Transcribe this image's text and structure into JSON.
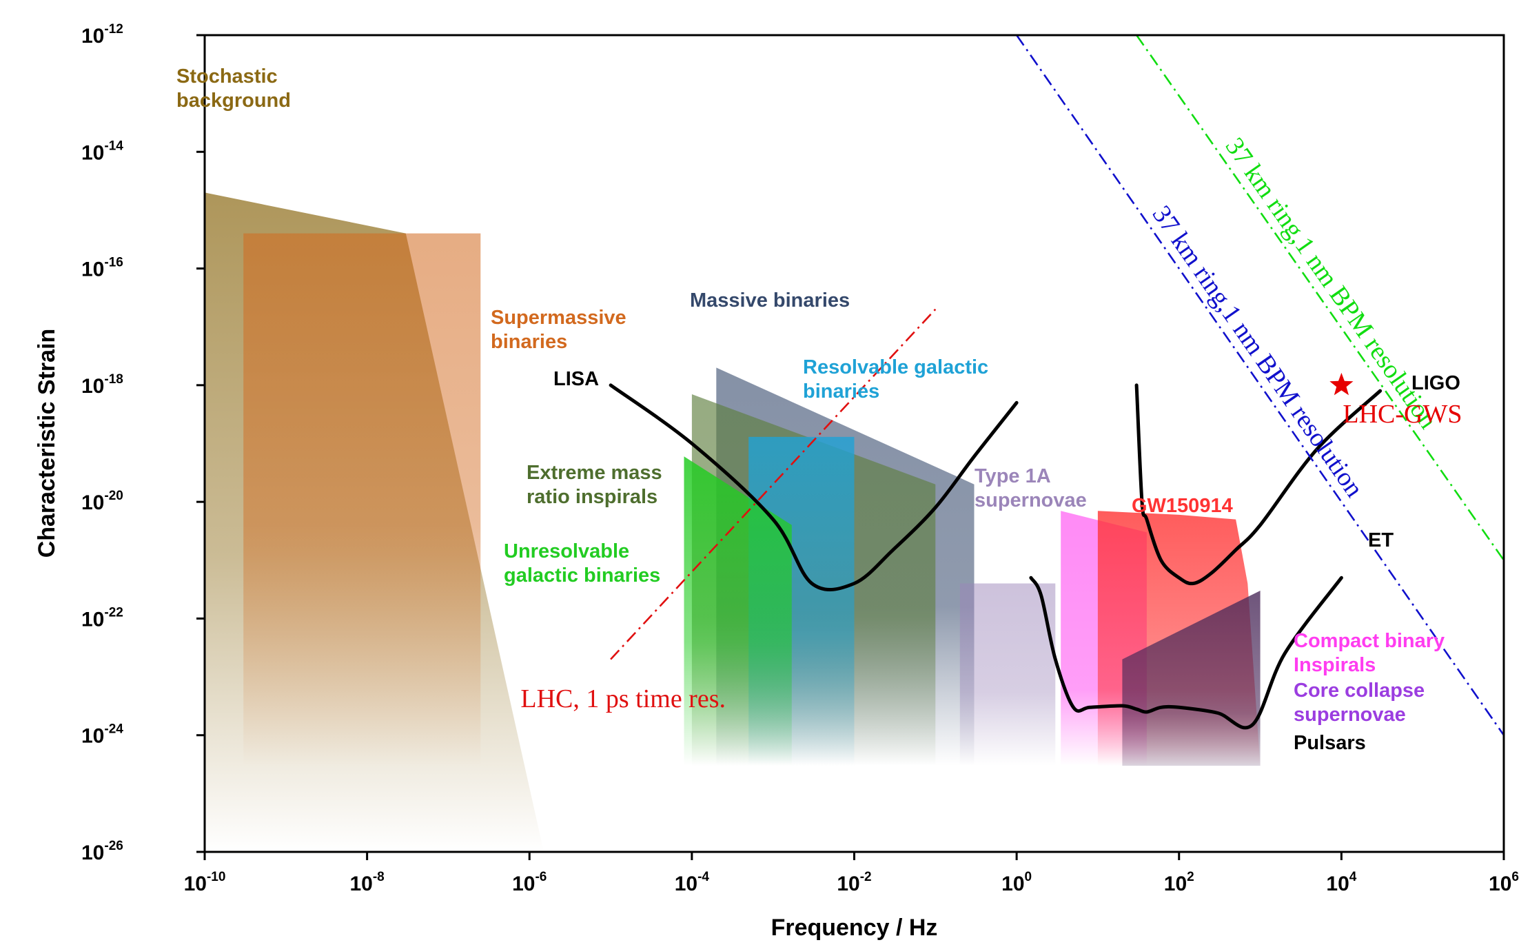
{
  "chart_data": {
    "type": "area",
    "title": "",
    "xlabel": "Frequency / Hz",
    "ylabel": "Characteristic Strain",
    "x_scale": "log",
    "y_scale": "log",
    "xlim": [
      1e-10,
      1000000.0
    ],
    "ylim": [
      1e-26,
      1e-12
    ],
    "grid": false,
    "x_tick_exponents": [
      -10,
      -8,
      -6,
      -4,
      -2,
      0,
      2,
      4,
      6
    ],
    "y_tick_exponents": [
      -12,
      -14,
      -16,
      -18,
      -20,
      -22,
      -24,
      -26
    ],
    "tick_base": "10",
    "regions": [
      {
        "key": "stochastic",
        "label_lines": [
          "Stochastic",
          "background"
        ],
        "color": "#8b6914",
        "points": [
          [
            1e-10,
            2e-15
          ],
          [
            3e-08,
            4e-16
          ],
          [
            1.5e-06,
            1e-26
          ],
          [
            1e-10,
            1e-26
          ]
        ]
      },
      {
        "key": "smbh",
        "label_lines": [
          "Supermassive",
          "binaries"
        ],
        "color": "#d2691e",
        "points": [
          [
            3e-10,
            4e-16
          ],
          [
            2.5e-07,
            4e-16
          ],
          [
            2.5e-07,
            3e-25
          ],
          [
            3e-10,
            3e-25
          ]
        ]
      },
      {
        "key": "massive",
        "label_lines": [
          "Massive binaries"
        ],
        "color": "#34486b",
        "points": [
          [
            0.0002,
            2e-18
          ],
          [
            0.3,
            2e-20
          ],
          [
            0.3,
            3e-25
          ],
          [
            0.0002,
            3e-25
          ]
        ]
      },
      {
        "key": "emri",
        "label_lines": [
          "Extreme mass",
          "ratio inspirals"
        ],
        "color": "#5e7e3e",
        "points": [
          [
            0.0001,
            7e-19
          ],
          [
            0.1,
            2e-20
          ],
          [
            0.1,
            3e-25
          ],
          [
            0.0001,
            3e-25
          ]
        ]
      },
      {
        "key": "resolvable",
        "label_lines": [
          "Resolvable galactic",
          "binaries"
        ],
        "color": "#1fa2d6",
        "points": [
          [
            0.0005,
            1.3e-19
          ],
          [
            0.01,
            1.3e-19
          ],
          [
            0.01,
            3e-25
          ],
          [
            0.0005,
            3e-25
          ]
        ]
      },
      {
        "key": "unresolvable",
        "label_lines": [
          "Unresolvable",
          "galactic binaries"
        ],
        "color": "#22cc22",
        "points": [
          [
            8e-05,
            6e-20
          ],
          [
            0.0017,
            4e-21
          ],
          [
            0.0017,
            3e-25
          ],
          [
            8e-05,
            3e-25
          ]
        ]
      },
      {
        "key": "type1a",
        "label_lines": [
          "Type 1A",
          "supernovae"
        ],
        "color": "#9b85b9",
        "points": [
          [
            0.2,
            4e-22
          ],
          [
            3,
            4e-22
          ],
          [
            3,
            3e-25
          ],
          [
            0.2,
            3e-25
          ]
        ]
      },
      {
        "key": "cbc",
        "label_lines": [
          "Compact binary",
          "Inspirals"
        ],
        "color": "#ff3df0",
        "points": [
          [
            3.5,
            7e-21
          ],
          [
            40,
            3e-21
          ],
          [
            40,
            3e-25
          ],
          [
            3.5,
            3e-25
          ]
        ]
      },
      {
        "key": "gw150914",
        "label_lines": [
          "GW150914"
        ],
        "color": "#ff3333",
        "points": [
          [
            10,
            7e-21
          ],
          [
            100,
            6e-21
          ],
          [
            500,
            5e-21
          ],
          [
            700,
            4e-22
          ],
          [
            1000,
            3e-25
          ],
          [
            10,
            3e-25
          ]
        ]
      },
      {
        "key": "core",
        "label_lines": [
          "Core collapse",
          "supernovae"
        ],
        "color": "#7a3fd6",
        "points": [
          [
            20,
            2e-23
          ],
          [
            1000,
            3e-22
          ],
          [
            1000,
            3e-25
          ],
          [
            20,
            3e-25
          ]
        ]
      },
      {
        "key": "pulsars",
        "label_lines": [
          "Pulsars"
        ],
        "color": "#000000",
        "points": []
      }
    ],
    "detector_curves": [
      {
        "name": "LISA",
        "points": [
          [
            1e-05,
            1e-18
          ],
          [
            0.0001,
            1e-19
          ],
          [
            0.001,
            5e-21
          ],
          [
            0.003,
            4e-22
          ],
          [
            0.01,
            4e-22
          ],
          [
            0.03,
            1.5e-21
          ],
          [
            0.1,
            8e-21
          ],
          [
            0.3,
            6e-20
          ],
          [
            1,
            5e-19
          ]
        ]
      },
      {
        "name": "LIGO",
        "points": [
          [
            30,
            1e-18
          ],
          [
            35,
            1e-20
          ],
          [
            40,
            5e-21
          ],
          [
            60,
            1e-21
          ],
          [
            100,
            5e-22
          ],
          [
            150,
            4e-22
          ],
          [
            250,
            6e-22
          ],
          [
            500,
            1.5e-21
          ],
          [
            1000,
            4e-21
          ],
          [
            5000,
            8e-20
          ],
          [
            30000,
            8e-19
          ]
        ]
      },
      {
        "name": "ET",
        "points": [
          [
            1.5,
            5e-22
          ],
          [
            2,
            2.5e-22
          ],
          [
            3,
            2e-23
          ],
          [
            5,
            3e-24
          ],
          [
            8,
            3e-24
          ],
          [
            20,
            3.2e-24
          ],
          [
            30,
            2.8e-24
          ],
          [
            40,
            2.5e-24
          ],
          [
            60,
            3e-24
          ],
          [
            100,
            3e-24
          ],
          [
            300,
            2.4e-24
          ],
          [
            800,
            1.5e-24
          ],
          [
            2000,
            2.5e-23
          ],
          [
            10000,
            5e-22
          ]
        ]
      }
    ],
    "reference_lines": [
      {
        "label": "LHC, 1 ps time res.",
        "color": "#e01010",
        "points": [
          [
            1e-05,
            2e-23
          ],
          [
            0.1,
            2e-17
          ]
        ]
      },
      {
        "label": "37 km ring,1 nm BPM resolution",
        "color": "#1010cc",
        "points": [
          [
            1,
            1e-12
          ],
          [
            1000000.0,
            1e-24
          ]
        ]
      },
      {
        "label": "37 km ring,1 nm BPM resolution",
        "color": "#11dd11",
        "points": [
          [
            30,
            1e-12
          ],
          [
            1000000.0,
            1e-21
          ]
        ]
      }
    ],
    "point_marker": {
      "label": "LHC-GWS",
      "color": "#e60000",
      "x": 10000.0,
      "y": 1e-18
    }
  }
}
